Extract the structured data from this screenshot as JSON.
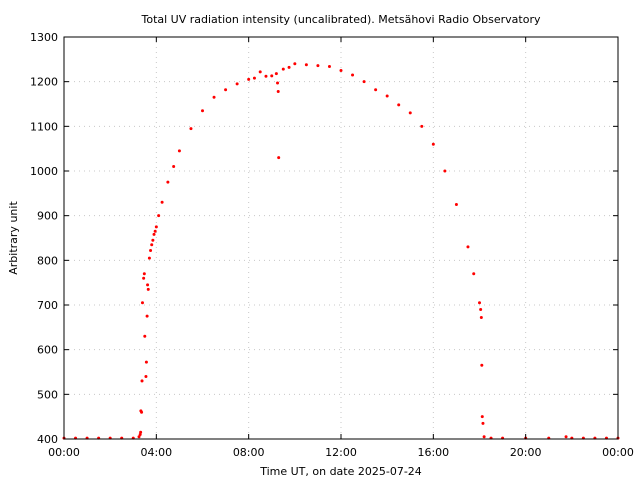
{
  "chart_data": {
    "type": "scatter",
    "title": "Total UV radiation intensity (uncalibrated). Metsähovi Radio Observatory",
    "xlabel": "Time UT, on date 2025-07-24",
    "ylabel": "Arbitrary unit",
    "xlim": [
      0,
      24
    ],
    "ylim": [
      400,
      1300
    ],
    "x_ticks": [
      0,
      4,
      8,
      12,
      16,
      20,
      24
    ],
    "x_tick_labels": [
      "00:00",
      "04:00",
      "08:00",
      "12:00",
      "16:00",
      "20:00",
      "00:00"
    ],
    "y_ticks": [
      400,
      500,
      600,
      700,
      800,
      900,
      1000,
      1100,
      1200,
      1300
    ],
    "y_tick_labels": [
      "400",
      "500",
      "600",
      "700",
      "800",
      "900",
      "1000",
      "1100",
      "1200",
      "1300"
    ],
    "grid": true,
    "marker_color": "#ff0000",
    "series": [
      {
        "points": [
          [
            0.0,
            402
          ],
          [
            0.5,
            402
          ],
          [
            1.0,
            402
          ],
          [
            1.5,
            402
          ],
          [
            2.0,
            402
          ],
          [
            2.5,
            402
          ],
          [
            3.0,
            402
          ],
          [
            3.25,
            405
          ],
          [
            3.3,
            410
          ],
          [
            3.32,
            415
          ],
          [
            3.33,
            463
          ],
          [
            3.36,
            460
          ],
          [
            3.38,
            530
          ],
          [
            3.4,
            705
          ],
          [
            3.45,
            760
          ],
          [
            3.48,
            770
          ],
          [
            3.5,
            630
          ],
          [
            3.55,
            540
          ],
          [
            3.57,
            572
          ],
          [
            3.6,
            675
          ],
          [
            3.62,
            745
          ],
          [
            3.65,
            735
          ],
          [
            3.7,
            805
          ],
          [
            3.75,
            822
          ],
          [
            3.8,
            835
          ],
          [
            3.85,
            845
          ],
          [
            3.9,
            858
          ],
          [
            3.95,
            865
          ],
          [
            4.0,
            875
          ],
          [
            4.1,
            900
          ],
          [
            4.25,
            930
          ],
          [
            4.5,
            975
          ],
          [
            4.75,
            1010
          ],
          [
            5.0,
            1045
          ],
          [
            5.5,
            1095
          ],
          [
            6.0,
            1135
          ],
          [
            6.5,
            1165
          ],
          [
            7.0,
            1182
          ],
          [
            7.5,
            1195
          ],
          [
            8.0,
            1205
          ],
          [
            8.25,
            1208
          ],
          [
            8.5,
            1222
          ],
          [
            8.75,
            1212
          ],
          [
            9.0,
            1213
          ],
          [
            9.2,
            1218
          ],
          [
            9.25,
            1197
          ],
          [
            9.28,
            1178
          ],
          [
            9.3,
            1030
          ],
          [
            9.5,
            1228
          ],
          [
            9.75,
            1232
          ],
          [
            10.0,
            1240
          ],
          [
            10.5,
            1238
          ],
          [
            11.0,
            1236
          ],
          [
            11.5,
            1234
          ],
          [
            12.0,
            1225
          ],
          [
            12.5,
            1215
          ],
          [
            13.0,
            1200
          ],
          [
            13.5,
            1182
          ],
          [
            14.0,
            1168
          ],
          [
            14.5,
            1148
          ],
          [
            15.0,
            1130
          ],
          [
            15.5,
            1100
          ],
          [
            16.0,
            1060
          ],
          [
            16.5,
            1000
          ],
          [
            17.0,
            925
          ],
          [
            17.5,
            830
          ],
          [
            17.75,
            770
          ],
          [
            18.0,
            705
          ],
          [
            18.05,
            690
          ],
          [
            18.08,
            672
          ],
          [
            18.1,
            565
          ],
          [
            18.12,
            450
          ],
          [
            18.15,
            435
          ],
          [
            18.2,
            405
          ],
          [
            18.5,
            402
          ],
          [
            19.0,
            402
          ],
          [
            20.0,
            402
          ],
          [
            21.0,
            402
          ],
          [
            21.75,
            405
          ],
          [
            22.0,
            402
          ],
          [
            22.5,
            402
          ],
          [
            23.0,
            402
          ],
          [
            23.5,
            402
          ],
          [
            24.0,
            402
          ]
        ]
      }
    ]
  }
}
